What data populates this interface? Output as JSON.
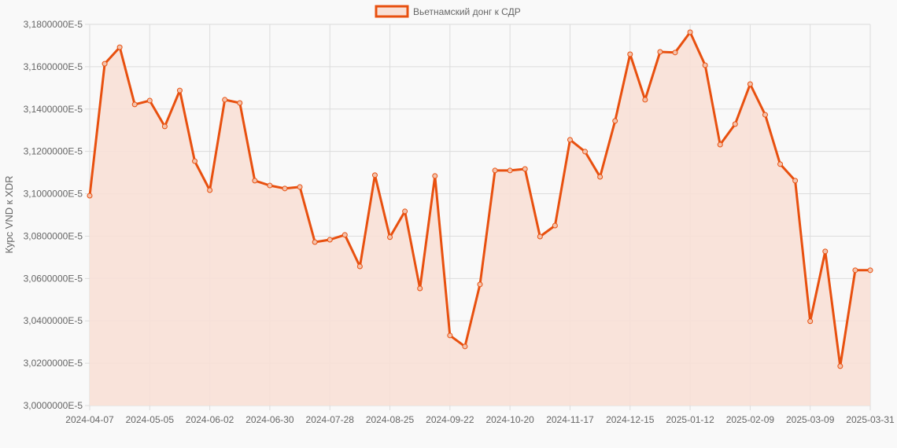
{
  "chart_data": {
    "type": "area",
    "title": "",
    "xlabel": "",
    "ylabel": "Курс VND к XDR",
    "ylim": [
      3e-05,
      3.18e-05
    ],
    "y_ticks": [
      "3,1800000E-5",
      "3,1600000E-5",
      "3,1400000E-5",
      "3,1200000E-5",
      "3,1000000E-5",
      "3,0800000E-5",
      "3,0600000E-5",
      "3,0400000E-5",
      "3,0200000E-5",
      "3,0000000E-5"
    ],
    "x_tick_labels": [
      "2024-04-07",
      "2024-05-05",
      "2024-06-02",
      "2024-06-30",
      "2024-07-28",
      "2024-08-25",
      "2024-09-22",
      "2024-10-20",
      "2024-11-17",
      "2024-12-15",
      "2025-01-12",
      "2025-02-09",
      "2025-03-09",
      "2025-03-31"
    ],
    "grid": true,
    "legend_position": "top",
    "colors": {
      "line": "#e8500f",
      "fill": "#f8e0d6"
    },
    "categories": [
      "2024-04-07",
      "2024-04-14",
      "2024-04-21",
      "2024-04-28",
      "2024-05-05",
      "2024-05-12",
      "2024-05-19",
      "2024-05-26",
      "2024-06-02",
      "2024-06-09",
      "2024-06-16",
      "2024-06-23",
      "2024-06-30",
      "2024-07-07",
      "2024-07-14",
      "2024-07-21",
      "2024-07-28",
      "2024-08-04",
      "2024-08-11",
      "2024-08-18",
      "2024-08-25",
      "2024-09-01",
      "2024-09-08",
      "2024-09-15",
      "2024-09-22",
      "2024-09-29",
      "2024-10-06",
      "2024-10-13",
      "2024-10-20",
      "2024-10-27",
      "2024-11-03",
      "2024-11-10",
      "2024-11-17",
      "2024-11-24",
      "2024-12-01",
      "2024-12-08",
      "2024-12-15",
      "2024-12-22",
      "2024-12-29",
      "2025-01-05",
      "2025-01-12",
      "2025-01-19",
      "2025-01-26",
      "2025-02-02",
      "2025-02-09",
      "2025-02-16",
      "2025-02-23",
      "2025-03-02",
      "2025-03-09",
      "2025-03-16",
      "2025-03-23",
      "2025-03-30",
      "2025-03-31"
    ],
    "series": [
      {
        "name": "Вьетнамский донг к СДР",
        "values": [
          3.0991e-05,
          3.1614e-05,
          3.1692e-05,
          3.1422e-05,
          3.144e-05,
          3.1318e-05,
          3.1488e-05,
          3.1154e-05,
          3.1017e-05,
          3.1444e-05,
          3.1429e-05,
          3.1062e-05,
          3.1039e-05,
          3.1025e-05,
          3.1032e-05,
          3.0772e-05,
          3.0783e-05,
          3.0806e-05,
          3.0657e-05,
          3.1088e-05,
          3.0795e-05,
          3.0917e-05,
          3.0553e-05,
          3.1084e-05,
          3.0331e-05,
          3.0279e-05,
          3.0572e-05,
          3.111e-05,
          3.111e-05,
          3.1117e-05,
          3.0798e-05,
          3.085e-05,
          3.1255e-05,
          3.1199e-05,
          3.108e-05,
          3.1344e-05,
          3.1659e-05,
          3.1444e-05,
          3.167e-05,
          3.1667e-05,
          3.1763e-05,
          3.1607e-05,
          3.1232e-05,
          3.1329e-05,
          3.1518e-05,
          3.1373e-05,
          3.114e-05,
          3.1062e-05,
          3.0398e-05,
          3.0728e-05,
          3.0186e-05,
          3.0639e-05,
          3.0639e-05
        ]
      }
    ]
  }
}
